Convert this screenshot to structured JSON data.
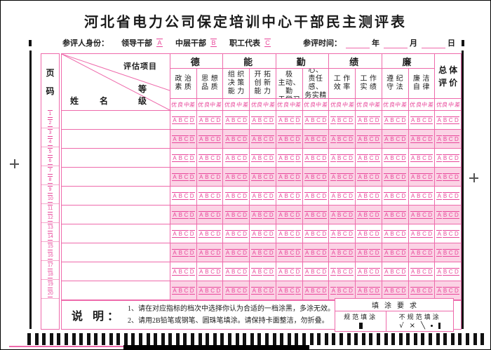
{
  "title": "河北省电力公司保定培训中心干部民主测评表",
  "identity": {
    "label": "参评人身份：",
    "options": [
      {
        "label": "领导干部",
        "mark": "A"
      },
      {
        "label": "中层干部",
        "mark": "B"
      },
      {
        "label": "职工代表",
        "mark": "C"
      }
    ],
    "time_label": "参评时间：",
    "time_units": [
      "年",
      "月",
      "日"
    ]
  },
  "table": {
    "page_col_header": "页码",
    "page_numbers": [
      1,
      2,
      3,
      4,
      5,
      6,
      7,
      8,
      9,
      10,
      11,
      12,
      13,
      14,
      15,
      16,
      17,
      18,
      19,
      20
    ],
    "diagonal": {
      "top": "评估项目",
      "left": "姓名",
      "right": "等级"
    },
    "groups": [
      {
        "name": "德",
        "subs": [
          "政 治\n素 质",
          "思 想\n品 质"
        ]
      },
      {
        "name": "能",
        "subs": [
          "组 织\n决 策\n能 力",
          "开 拓\n创 新\n能 力"
        ]
      },
      {
        "name": "勤",
        "subs": [
          "工作积极\n主动、勤\n于学习",
          "事业心、\n责任感、\n务实精神"
        ]
      },
      {
        "name": "绩",
        "subs": [
          "工 作\n效 率",
          "工 作\n实 绩"
        ]
      },
      {
        "name": "廉",
        "subs": [
          "遵 纪\n守 法",
          "廉 洁\n自 律"
        ]
      }
    ],
    "overall_header": "总 体\n评 价",
    "grade_labels": [
      "优",
      "良",
      "中",
      "差"
    ],
    "bubble_letters": [
      "A",
      "B",
      "C",
      "D"
    ],
    "data_row_count": 10
  },
  "footer": {
    "note_label": "说 明：",
    "notes": [
      "1、请在对应指标的档次中选择你认为合适的一档涂黑，多涂无效。",
      "2、请用2B铅笔或钢笔、圆珠笔填涂。请保持卡面整洁，勿折叠。"
    ],
    "fill_req": {
      "title": "填涂要求",
      "good_label": "规范填涂",
      "bad_label": "不规范填涂",
      "bad_marks": [
        {
          "name": "check",
          "glyph": "√"
        },
        {
          "name": "cross",
          "glyph": "×"
        },
        {
          "name": "slash",
          "glyph": "╲"
        },
        {
          "name": "dot",
          "glyph": ""
        },
        {
          "name": "bar",
          "glyph": ""
        }
      ]
    }
  },
  "colors": {
    "grid_pink": "#ee6aab",
    "mark_pink": "#e8479a",
    "row_shade": "#fbd3e5",
    "ink": "#1b1b1b"
  },
  "calibration": {
    "timing_mark_count": 62
  }
}
